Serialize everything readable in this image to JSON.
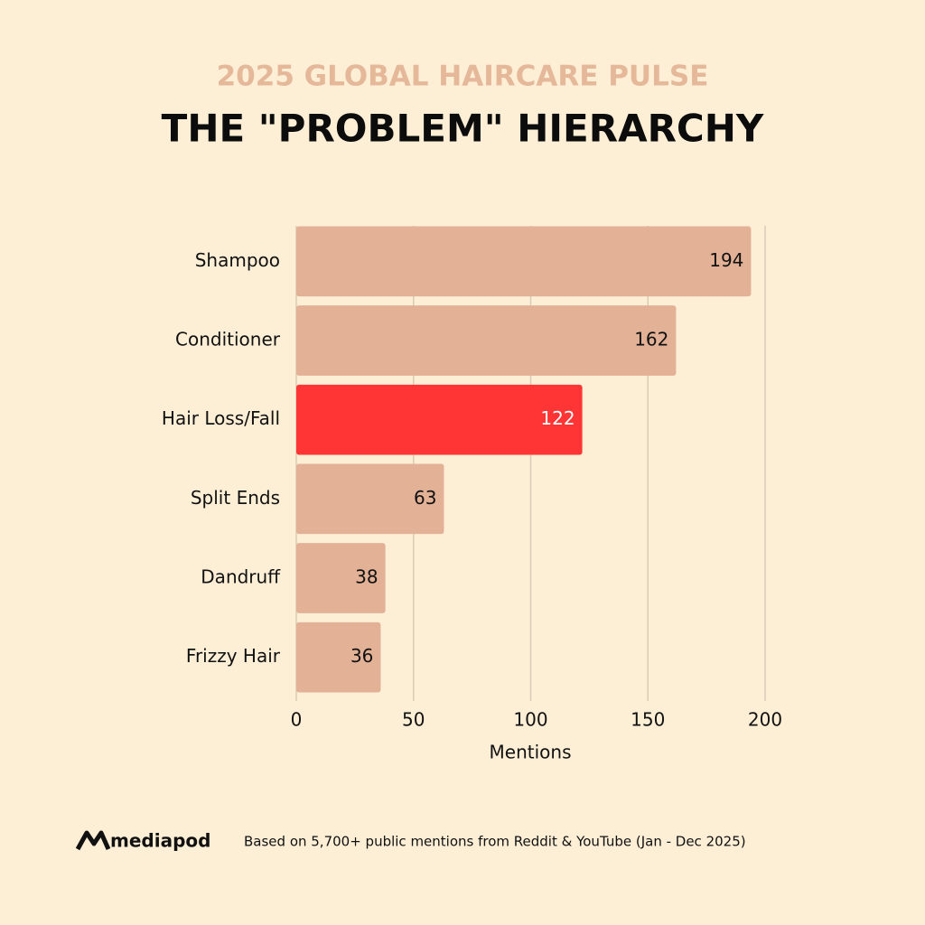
{
  "chart_data": {
    "type": "hbar",
    "supertitle": "2025 GLOBAL HAIRCARE PULSE",
    "title": "THE \"PROBLEM\" HIERARCHY",
    "categories": [
      "Shampoo",
      "Conditioner",
      "Hair Loss/Fall",
      "Split Ends",
      "Dandruff",
      "Frizzy Hair"
    ],
    "values": [
      194,
      162,
      122,
      63,
      38,
      36
    ],
    "colors": [
      "#e2b196",
      "#e2b196",
      "#ff3434",
      "#e2b196",
      "#e2b196",
      "#e2b196"
    ],
    "label_colors": [
      "#111111",
      "#111111",
      "#ffffff",
      "#111111",
      "#111111",
      "#111111"
    ],
    "xlim": [
      0,
      200
    ],
    "xticks": [
      0,
      50,
      100,
      150,
      200
    ],
    "xlabel": "Mentions",
    "grid": true
  },
  "footer": {
    "brand": "mediapod",
    "note": "Based on 5,700+ public mentions from Reddit & YouTube (Jan - Dec 2025)"
  }
}
